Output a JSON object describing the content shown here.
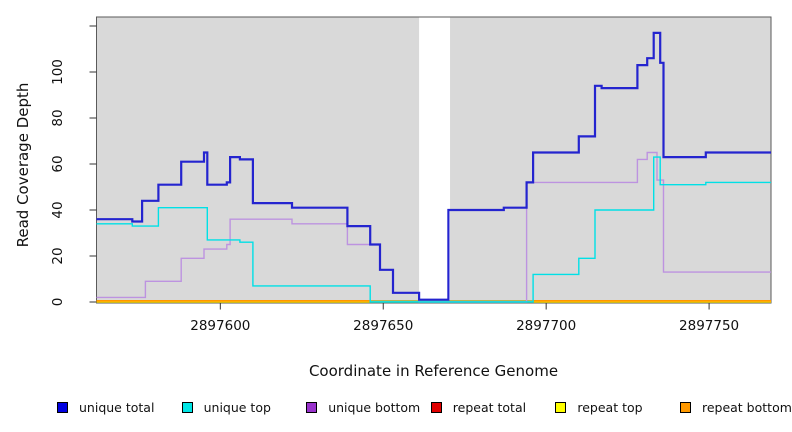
{
  "chart_data": {
    "type": "line",
    "subtype": "step",
    "title": "",
    "xlabel": "Coordinate in Reference Genome",
    "ylabel": "Read Coverage Depth",
    "xlim": [
      2897562,
      2897769
    ],
    "ylim": [
      0,
      124
    ],
    "x_ticks": [
      {
        "v": 2897600,
        "label": "2897600"
      },
      {
        "v": 2897650,
        "label": "2897650"
      },
      {
        "v": 2897700,
        "label": "2897700"
      },
      {
        "v": 2897750,
        "label": "2897750"
      }
    ],
    "y_ticks": [
      {
        "v": 0,
        "label": "0"
      },
      {
        "v": 20,
        "label": "20"
      },
      {
        "v": 40,
        "label": "40"
      },
      {
        "v": 60,
        "label": "60"
      },
      {
        "v": 80,
        "label": "80"
      },
      {
        "v": 100,
        "label": "100"
      },
      {
        "v": 120,
        "label": ""
      }
    ],
    "grid": false,
    "plot_bg": "#d9d9d9",
    "frame_color": "#5a5a5a",
    "gap_region": {
      "x_start": 2897661,
      "x_end": 2897670.5,
      "color": "#ffffff",
      "note": "white vertical band across panel; unique coverage drops to ~0 here"
    },
    "overlap_segment": {
      "x_start": 2897646,
      "x_end": 2897696,
      "y": 0.3,
      "color": "#79cf9e",
      "note": "where 'unique top' sits at 0 over the orange baseline the line renders pale green"
    },
    "series": [
      {
        "name": "unique total",
        "color": "#2424cf",
        "width": 2.2,
        "steps": [
          [
            2897562,
            36
          ],
          [
            2897573,
            35
          ],
          [
            2897576,
            44
          ],
          [
            2897581,
            51
          ],
          [
            2897588,
            61
          ],
          [
            2897595,
            65
          ],
          [
            2897596,
            51
          ],
          [
            2897602,
            52
          ],
          [
            2897603,
            63
          ],
          [
            2897606,
            62
          ],
          [
            2897610,
            43
          ],
          [
            2897622,
            41
          ],
          [
            2897639,
            33
          ],
          [
            2897646,
            25
          ],
          [
            2897649,
            14
          ],
          [
            2897653,
            4
          ],
          [
            2897661,
            1
          ],
          [
            2897670,
            40
          ],
          [
            2897687,
            41
          ],
          [
            2897694,
            52
          ],
          [
            2897696,
            65
          ],
          [
            2897710,
            72
          ],
          [
            2897715,
            94
          ],
          [
            2897717,
            93
          ],
          [
            2897728,
            103
          ],
          [
            2897731,
            106
          ],
          [
            2897733,
            117
          ],
          [
            2897735,
            104
          ],
          [
            2897736,
            63
          ],
          [
            2897749,
            65
          ]
        ]
      },
      {
        "name": "unique top",
        "color": "#00e0e6",
        "width": 1.4,
        "steps": [
          [
            2897562,
            34
          ],
          [
            2897573,
            33
          ],
          [
            2897581,
            41
          ],
          [
            2897596,
            27
          ],
          [
            2897606,
            26
          ],
          [
            2897610,
            7
          ],
          [
            2897646,
            0
          ],
          [
            2897696,
            12
          ],
          [
            2897710,
            19
          ],
          [
            2897715,
            40
          ],
          [
            2897733,
            63
          ],
          [
            2897735,
            51
          ],
          [
            2897749,
            52
          ]
        ]
      },
      {
        "name": "unique bottom",
        "color": "#bd93e0",
        "width": 1.4,
        "steps": [
          [
            2897562,
            2
          ],
          [
            2897577,
            9
          ],
          [
            2897588,
            19
          ],
          [
            2897595,
            23
          ],
          [
            2897602,
            25
          ],
          [
            2897603,
            36
          ],
          [
            2897622,
            34
          ],
          [
            2897639,
            25
          ],
          [
            2897649,
            14
          ],
          [
            2897653,
            4
          ],
          [
            2897661,
            0
          ],
          [
            2897694,
            52
          ],
          [
            2897728,
            62
          ],
          [
            2897731,
            65
          ],
          [
            2897734,
            53
          ],
          [
            2897736,
            13
          ]
        ]
      },
      {
        "name": "repeat total",
        "color": "#e00000",
        "width": 1.2,
        "steps": [
          [
            2897562,
            0
          ]
        ]
      },
      {
        "name": "repeat top",
        "color": "#ffff00",
        "width": 1.2,
        "steps": [
          [
            2897562,
            0
          ]
        ]
      },
      {
        "name": "repeat bottom",
        "color": "#ff9600",
        "width": 1.8,
        "steps": [
          [
            2897562,
            0.5
          ]
        ]
      }
    ],
    "legend": {
      "position": "bottom",
      "items": [
        {
          "label": "unique total",
          "fill": "#0000e0"
        },
        {
          "label": "unique top",
          "fill": "#00e5e5"
        },
        {
          "label": "unique bottom",
          "fill": "#9932cc"
        },
        {
          "label": "repeat total",
          "fill": "#e00000"
        },
        {
          "label": "repeat top",
          "fill": "#ffff00"
        },
        {
          "label": "repeat bottom",
          "fill": "#ff9900"
        }
      ]
    }
  }
}
